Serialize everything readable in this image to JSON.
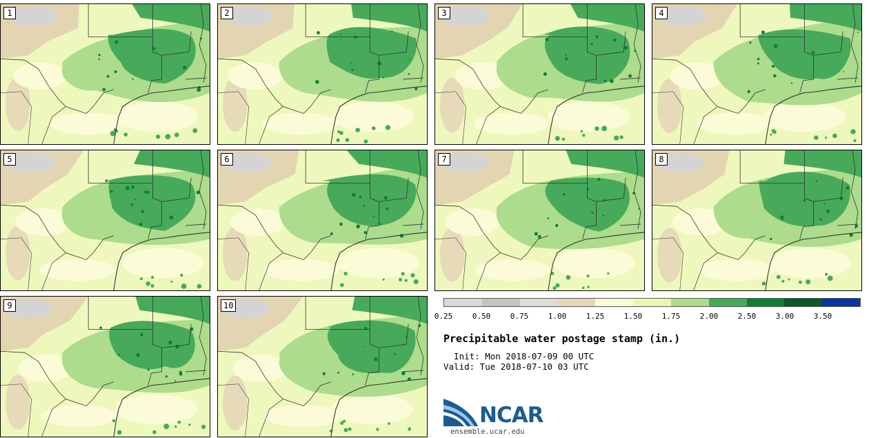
{
  "panels": [
    {
      "label": "1"
    },
    {
      "label": "2"
    },
    {
      "label": "3"
    },
    {
      "label": "4"
    },
    {
      "label": "5"
    },
    {
      "label": "6"
    },
    {
      "label": "7"
    },
    {
      "label": "8"
    },
    {
      "label": "9"
    },
    {
      "label": "10"
    }
  ],
  "colorbar": {
    "colors": [
      "#d9d9d9",
      "#c4c4c4",
      "#e0ddd6",
      "#e5d8b8",
      "#fbfbd8",
      "#eaf7b4",
      "#acdc8c",
      "#46aa5a",
      "#0d8034",
      "#0a5a27",
      "#0732aa"
    ],
    "ticks": [
      "0.25",
      "0.50",
      "0.75",
      "1.00",
      "1.25",
      "1.50",
      "1.75",
      "2.00",
      "2.50",
      "3.00",
      "3.50"
    ]
  },
  "title": "Precipitable water postage stamp (in.)",
  "init": "  Init: Mon 2018-07-09 00 UTC",
  "valid": "Valid: Tue 2018-07-10 03 UTC",
  "logo": {
    "name": "NCAR",
    "url": "ensemble.ucar.edu"
  }
}
